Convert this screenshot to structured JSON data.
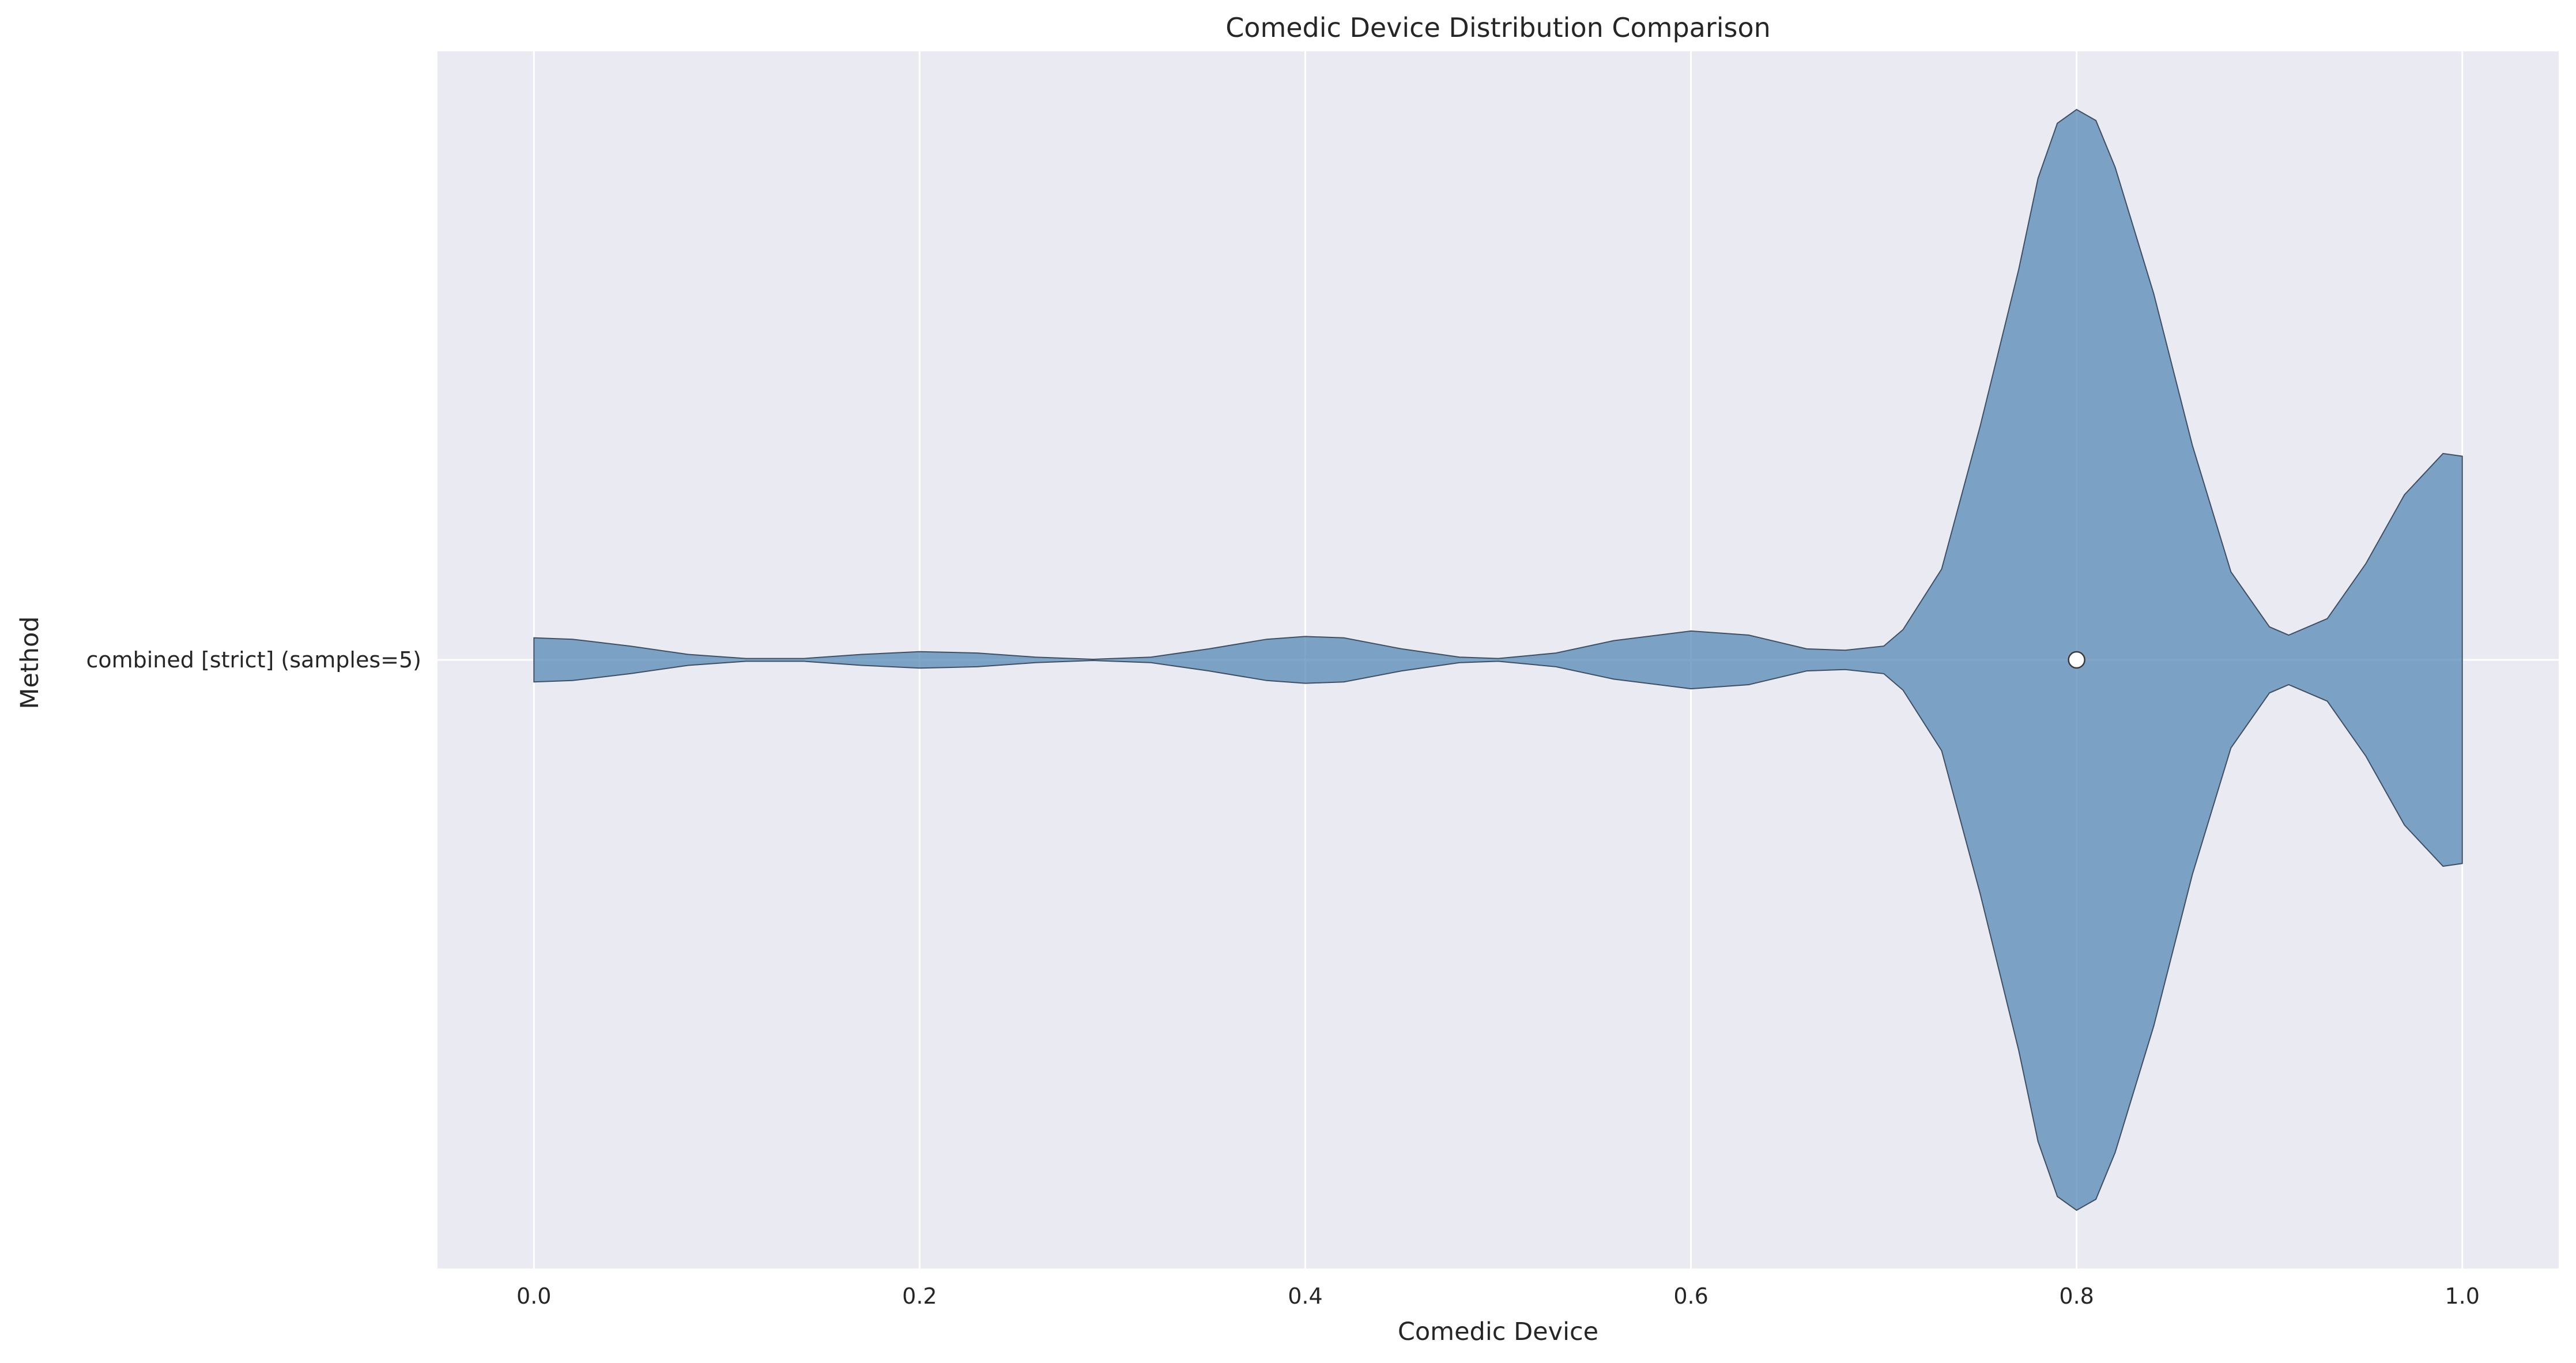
{
  "chart_data": {
    "type": "violin",
    "title": "Comedic Device Distribution Comparison",
    "xlabel": "Comedic Device",
    "ylabel": "Method",
    "xlim": [
      -0.05,
      1.05
    ],
    "xticks": [
      0.0,
      0.2,
      0.4,
      0.6,
      0.8,
      1.0
    ],
    "xtick_labels": [
      "0.0",
      "0.2",
      "0.4",
      "0.6",
      "0.8",
      "1.0"
    ],
    "categories": [
      "combined [strict] (samples=5)"
    ],
    "grid": true,
    "series": [
      {
        "category": "combined [strict] (samples=5)",
        "median": 0.8,
        "density": [
          [
            0.0,
            0.08
          ],
          [
            0.02,
            0.075
          ],
          [
            0.05,
            0.05
          ],
          [
            0.08,
            0.02
          ],
          [
            0.11,
            0.005
          ],
          [
            0.14,
            0.005
          ],
          [
            0.17,
            0.02
          ],
          [
            0.2,
            0.03
          ],
          [
            0.23,
            0.025
          ],
          [
            0.26,
            0.01
          ],
          [
            0.29,
            0.002
          ],
          [
            0.32,
            0.01
          ],
          [
            0.35,
            0.04
          ],
          [
            0.38,
            0.075
          ],
          [
            0.4,
            0.085
          ],
          [
            0.42,
            0.08
          ],
          [
            0.45,
            0.04
          ],
          [
            0.48,
            0.01
          ],
          [
            0.5,
            0.005
          ],
          [
            0.53,
            0.025
          ],
          [
            0.56,
            0.07
          ],
          [
            0.6,
            0.105
          ],
          [
            0.63,
            0.09
          ],
          [
            0.66,
            0.04
          ],
          [
            0.68,
            0.035
          ],
          [
            0.7,
            0.05
          ],
          [
            0.71,
            0.11
          ],
          [
            0.73,
            0.33
          ],
          [
            0.75,
            0.85
          ],
          [
            0.77,
            1.42
          ],
          [
            0.78,
            1.75
          ],
          [
            0.79,
            1.95
          ],
          [
            0.8,
            2.0
          ],
          [
            0.81,
            1.96
          ],
          [
            0.82,
            1.79
          ],
          [
            0.84,
            1.33
          ],
          [
            0.86,
            0.78
          ],
          [
            0.88,
            0.32
          ],
          [
            0.9,
            0.12
          ],
          [
            0.91,
            0.09
          ],
          [
            0.93,
            0.15
          ],
          [
            0.95,
            0.35
          ],
          [
            0.97,
            0.6
          ],
          [
            0.99,
            0.75
          ],
          [
            1.0,
            0.74
          ]
        ]
      }
    ]
  }
}
